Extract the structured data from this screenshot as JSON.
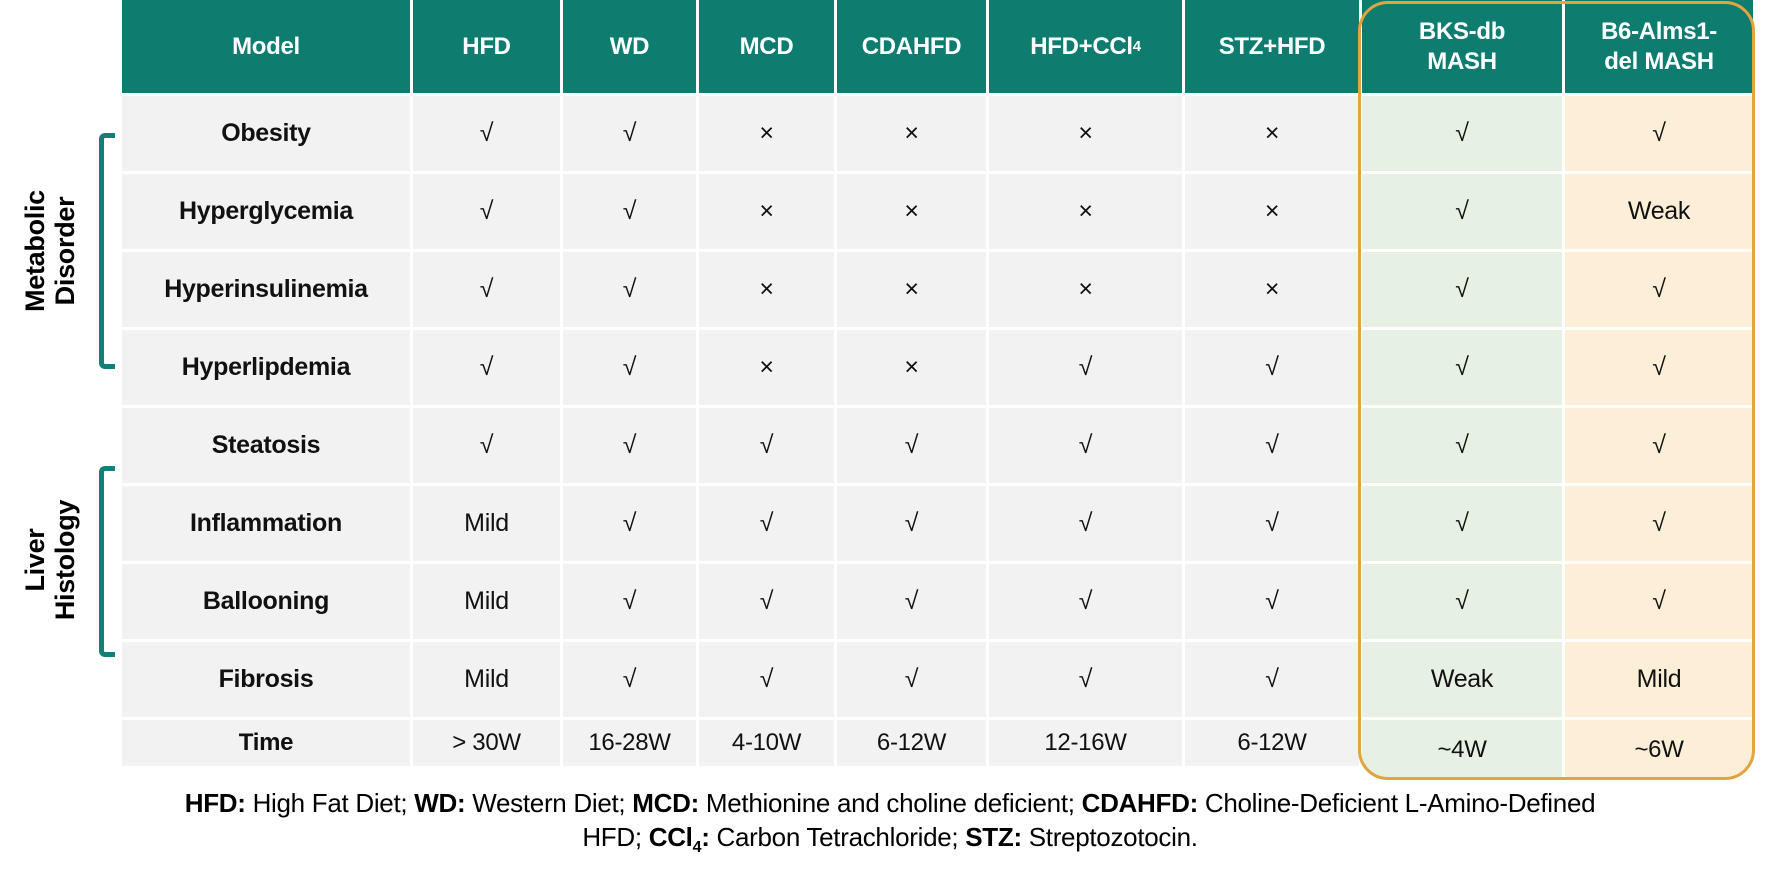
{
  "table": {
    "columns": [
      {
        "key": "model",
        "lines": [
          "Model"
        ]
      },
      {
        "key": "hfd",
        "lines": [
          "HFD"
        ]
      },
      {
        "key": "wd",
        "lines": [
          "WD"
        ]
      },
      {
        "key": "mcd",
        "lines": [
          "MCD"
        ]
      },
      {
        "key": "cdahfd",
        "lines": [
          "CDAHFD"
        ]
      },
      {
        "key": "hfd-ccl4",
        "lines": [
          "HFD+CCl"
        ],
        "subscript": "4"
      },
      {
        "key": "stz-hfd",
        "lines": [
          "STZ+HFD"
        ]
      },
      {
        "key": "bks-db-mash",
        "lines": [
          "BKS-db",
          "MASH"
        ],
        "highlight": "green"
      },
      {
        "key": "b6-alms1-del-mash",
        "lines": [
          "B6-Alms1-",
          "del MASH"
        ],
        "highlight": "cream"
      }
    ],
    "rows": [
      {
        "label": "Obesity",
        "cells": [
          "√",
          "√",
          "×",
          "×",
          "×",
          "×",
          "√",
          "√"
        ]
      },
      {
        "label": "Hyperglycemia",
        "cells": [
          "√",
          "√",
          "×",
          "×",
          "×",
          "×",
          "√",
          "Weak"
        ]
      },
      {
        "label": "Hyperinsulinemia",
        "cells": [
          "√",
          "√",
          "×",
          "×",
          "×",
          "×",
          "√",
          "√"
        ]
      },
      {
        "label": "Hyperlipdemia",
        "cells": [
          "√",
          "√",
          "×",
          "×",
          "√",
          "√",
          "√",
          "√"
        ]
      },
      {
        "label": "Steatosis",
        "cells": [
          "√",
          "√",
          "√",
          "√",
          "√",
          "√",
          "√",
          "√"
        ]
      },
      {
        "label": "Inflammation",
        "cells": [
          "Mild",
          "√",
          "√",
          "√",
          "√",
          "√",
          "√",
          "√"
        ]
      },
      {
        "label": "Ballooning",
        "cells": [
          "Mild",
          "√",
          "√",
          "√",
          "√",
          "√",
          "√",
          "√"
        ]
      },
      {
        "label": "Fibrosis",
        "cells": [
          "Mild",
          "√",
          "√",
          "√",
          "√",
          "√",
          "Weak",
          "Mild"
        ]
      },
      {
        "label": "Time",
        "cells": [
          "> 30W",
          "16-28W",
          "4-10W",
          "6-12W",
          "12-16W",
          "6-12W",
          "~4W",
          "~6W"
        ]
      }
    ]
  },
  "side_groups": [
    {
      "key": "metabolic-disorder",
      "label_lines": [
        "Metabolic",
        "Disorder"
      ],
      "covers_rows": [
        "Obesity",
        "Hyperglycemia",
        "Hyperinsulinemia",
        "Hyperlipdemia"
      ]
    },
    {
      "key": "liver-histology",
      "label_lines": [
        "Liver",
        "Histology"
      ],
      "covers_rows": [
        "Inflammation",
        "Ballooning",
        "Fibrosis"
      ]
    }
  ],
  "footnote": {
    "line1": [
      {
        "t": "HFD:",
        "b": true
      },
      {
        "t": " High Fat Diet; "
      },
      {
        "t": "WD:",
        "b": true
      },
      {
        "t": " Western Diet; "
      },
      {
        "t": "MCD:",
        "b": true
      },
      {
        "t": " Methionine and choline deficient; "
      },
      {
        "t": "CDAHFD:",
        "b": true
      },
      {
        "t": " Choline-Deficient L-Amino-Defined"
      }
    ],
    "line2": [
      {
        "t": "HFD; "
      },
      {
        "t": "CCl",
        "b": true
      },
      {
        "t": "4",
        "b": true,
        "sub": true
      },
      {
        "t": ":",
        "b": true
      },
      {
        "t": " Carbon Tetrachloride; "
      },
      {
        "t": "STZ:",
        "b": true
      },
      {
        "t": " Streptozotocin."
      }
    ]
  },
  "colors": {
    "header_bg": "#0e7d70",
    "row_bg": "#f2f2f2",
    "green_column_bg": "#e6f0e3",
    "cream_column_bg": "#fdeed8",
    "highlight_border": "#e2a43e",
    "bracket": "#128077",
    "header_text": "#ffffff"
  }
}
